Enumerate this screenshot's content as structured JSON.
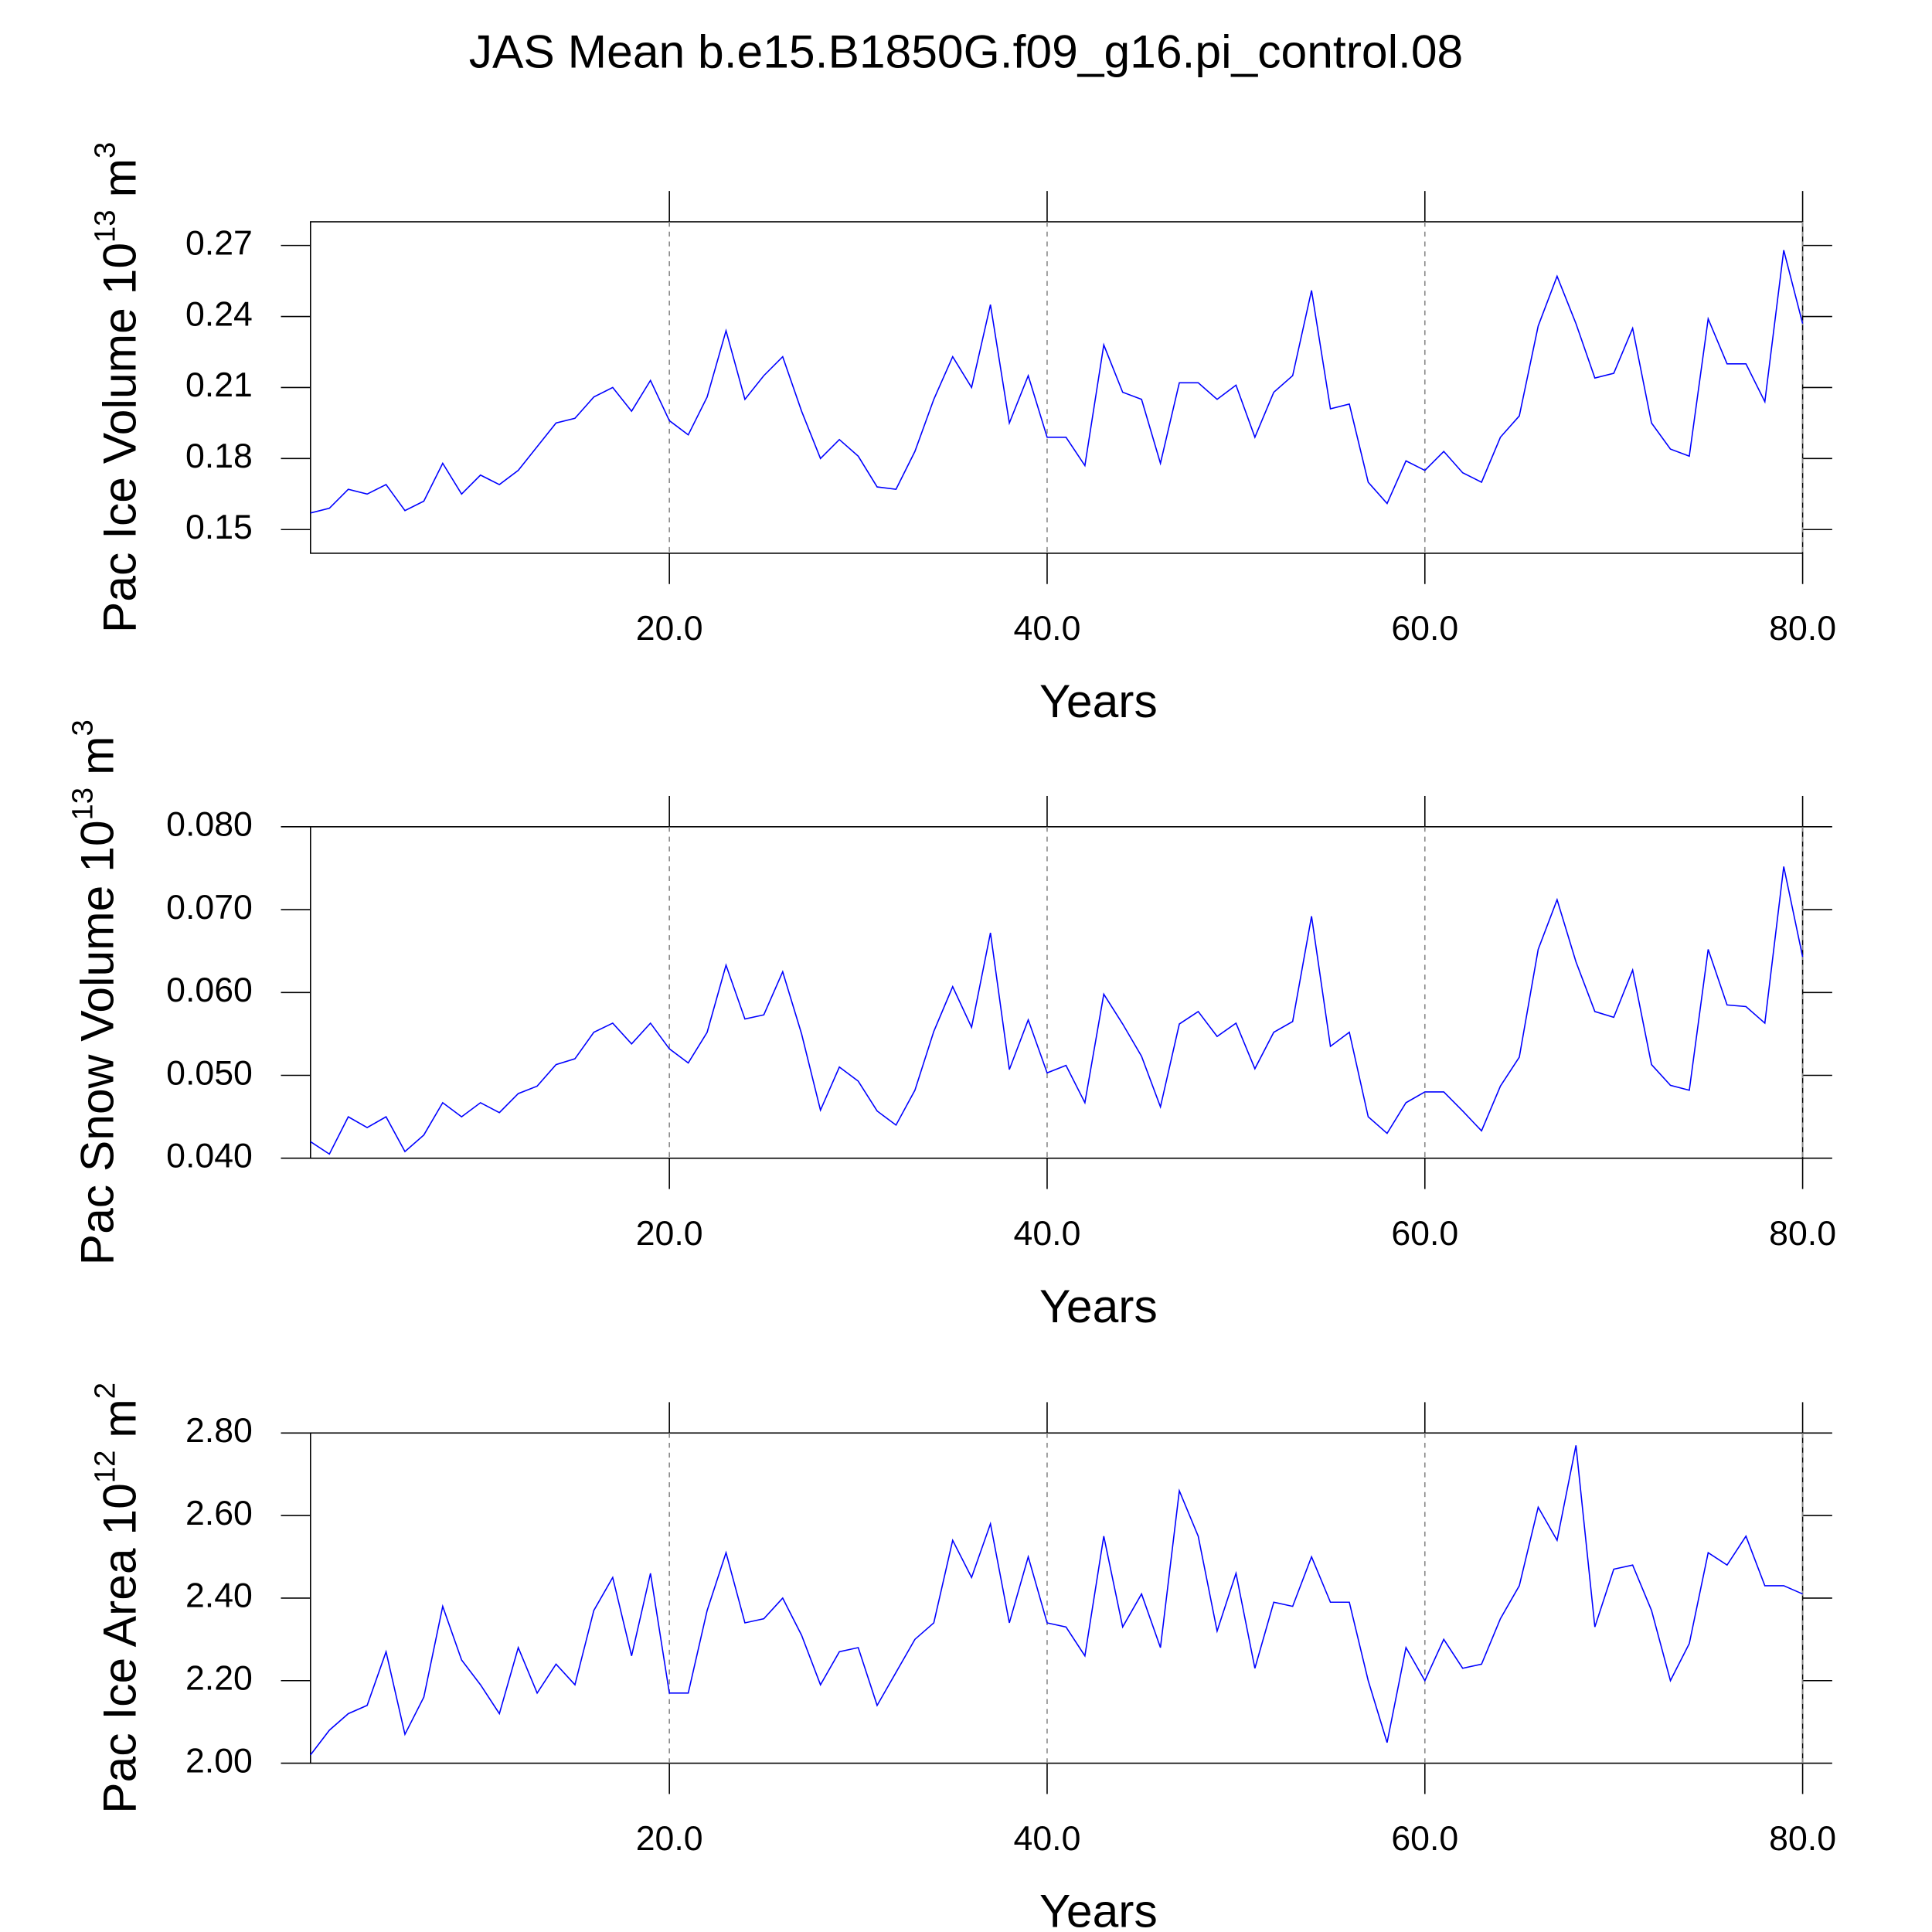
{
  "title": "JAS Mean b.e15.B1850G.f09_g16.pi_control.08",
  "chart_data": [
    {
      "type": "line",
      "ylabel": "Pac Ice Volume 10",
      "ylabel_exponent": "13",
      "ylabel_unit": "m",
      "ylabel_unit_exponent": "3",
      "xlabel": "Years",
      "color": "#0000ff",
      "grid": true,
      "xlim": [
        1,
        80
      ],
      "xticks": [
        {
          "value": 20,
          "label": "20.0"
        },
        {
          "value": 40,
          "label": "40.0"
        },
        {
          "value": 60,
          "label": "60.0"
        },
        {
          "value": 80,
          "label": "80.0"
        }
      ],
      "ylim": [
        0.14,
        0.28
      ],
      "yticks": [
        0.15,
        0.18,
        0.21,
        0.24,
        0.27
      ],
      "x": [
        1,
        2,
        3,
        4,
        5,
        6,
        7,
        8,
        9,
        10,
        11,
        12,
        13,
        14,
        15,
        16,
        17,
        18,
        19,
        20,
        21,
        22,
        23,
        24,
        25,
        26,
        27,
        28,
        29,
        30,
        31,
        32,
        33,
        34,
        35,
        36,
        37,
        38,
        39,
        40,
        41,
        42,
        43,
        44,
        45,
        46,
        47,
        48,
        49,
        50,
        51,
        52,
        53,
        54,
        55,
        56,
        57,
        58,
        59,
        60,
        61,
        62,
        63,
        64,
        65,
        66,
        67,
        68,
        69,
        70,
        71,
        72,
        73,
        74,
        75,
        76,
        77,
        78,
        79,
        80
      ],
      "values": [
        0.157,
        0.159,
        0.167,
        0.165,
        0.169,
        0.158,
        0.162,
        0.178,
        0.165,
        0.173,
        0.169,
        0.175,
        0.185,
        0.195,
        0.197,
        0.206,
        0.21,
        0.2,
        0.213,
        0.196,
        0.19,
        0.206,
        0.234,
        0.205,
        0.215,
        0.223,
        0.2,
        0.18,
        0.188,
        0.181,
        0.168,
        0.167,
        0.183,
        0.205,
        0.223,
        0.21,
        0.245,
        0.195,
        0.215,
        0.189,
        0.189,
        0.177,
        0.228,
        0.208,
        0.205,
        0.178,
        0.212,
        0.212,
        0.205,
        0.211,
        0.189,
        0.208,
        0.215,
        0.251,
        0.201,
        0.203,
        0.17,
        0.161,
        0.179,
        0.175,
        0.183,
        0.174,
        0.17,
        0.189,
        0.198,
        0.236,
        0.257,
        0.237,
        0.214,
        0.216,
        0.235,
        0.195,
        0.184,
        0.181,
        0.239,
        0.22,
        0.22,
        0.204,
        0.268,
        0.237
      ]
    },
    {
      "type": "line",
      "ylabel": "Pac Snow Volume 10",
      "ylabel_exponent": "13",
      "ylabel_unit": "m",
      "ylabel_unit_exponent": "3",
      "xlabel": "Years",
      "color": "#0000ff",
      "grid": true,
      "xlim": [
        1,
        80
      ],
      "xticks": [
        {
          "value": 20,
          "label": "20.0"
        },
        {
          "value": 40,
          "label": "40.0"
        },
        {
          "value": 60,
          "label": "60.0"
        },
        {
          "value": 80,
          "label": "80.0"
        }
      ],
      "ylim": [
        0.04,
        0.08
      ],
      "yticks": [
        {
          "value": 0.04,
          "label": "0.040"
        },
        {
          "value": 0.05,
          "label": "0.050"
        },
        {
          "value": 0.06,
          "label": "0.060"
        },
        {
          "value": 0.07,
          "label": "0.070"
        },
        {
          "value": 0.08,
          "label": "0.080"
        }
      ],
      "x": [
        1,
        2,
        3,
        4,
        5,
        6,
        7,
        8,
        9,
        10,
        11,
        12,
        13,
        14,
        15,
        16,
        17,
        18,
        19,
        20,
        21,
        22,
        23,
        24,
        25,
        26,
        27,
        28,
        29,
        30,
        31,
        32,
        33,
        34,
        35,
        36,
        37,
        38,
        39,
        40,
        41,
        42,
        43,
        44,
        45,
        46,
        47,
        48,
        49,
        50,
        51,
        52,
        53,
        54,
        55,
        56,
        57,
        58,
        59,
        60,
        61,
        62,
        63,
        64,
        65,
        66,
        67,
        68,
        69,
        70,
        71,
        72,
        73,
        74,
        75,
        76,
        77,
        78,
        79,
        80
      ],
      "values": [
        0.042,
        0.0405,
        0.045,
        0.0437,
        0.045,
        0.0408,
        0.0428,
        0.0467,
        0.045,
        0.0467,
        0.0455,
        0.0478,
        0.0487,
        0.0513,
        0.052,
        0.0552,
        0.0563,
        0.0538,
        0.0563,
        0.0532,
        0.0515,
        0.0552,
        0.0633,
        0.0568,
        0.0573,
        0.0625,
        0.055,
        0.0458,
        0.051,
        0.0493,
        0.0457,
        0.044,
        0.0482,
        0.0553,
        0.0607,
        0.0558,
        0.0672,
        0.0507,
        0.0567,
        0.0503,
        0.0512,
        0.0467,
        0.0598,
        0.0562,
        0.0523,
        0.0462,
        0.0562,
        0.0577,
        0.0547,
        0.0563,
        0.0508,
        0.0552,
        0.0565,
        0.0692,
        0.0535,
        0.0552,
        0.045,
        0.043,
        0.0467,
        0.048,
        0.048,
        0.0457,
        0.0433,
        0.0487,
        0.0522,
        0.0652,
        0.0712,
        0.0637,
        0.0577,
        0.057,
        0.0627,
        0.0513,
        0.0488,
        0.0482,
        0.0652,
        0.0585,
        0.0583,
        0.0563,
        0.0752,
        0.0643
      ]
    },
    {
      "type": "line",
      "ylabel": "Pac Ice Area 10",
      "ylabel_exponent": "12",
      "ylabel_unit": "m",
      "ylabel_unit_exponent": "2",
      "xlabel": "Years",
      "color": "#0000ff",
      "grid": true,
      "xlim": [
        1,
        80
      ],
      "xticks": [
        {
          "value": 20,
          "label": "20.0"
        },
        {
          "value": 40,
          "label": "40.0"
        },
        {
          "value": 60,
          "label": "60.0"
        },
        {
          "value": 80,
          "label": "80.0"
        }
      ],
      "ylim": [
        2.0,
        2.8
      ],
      "yticks": [
        {
          "value": 2.0,
          "label": "2.00"
        },
        {
          "value": 2.2,
          "label": "2.20"
        },
        {
          "value": 2.4,
          "label": "2.40"
        },
        {
          "value": 2.6,
          "label": "2.60"
        },
        {
          "value": 2.8,
          "label": "2.80"
        }
      ],
      "x": [
        1,
        2,
        3,
        4,
        5,
        6,
        7,
        8,
        9,
        10,
        11,
        12,
        13,
        14,
        15,
        16,
        17,
        18,
        19,
        20,
        21,
        22,
        23,
        24,
        25,
        26,
        27,
        28,
        29,
        30,
        31,
        32,
        33,
        34,
        35,
        36,
        37,
        38,
        39,
        40,
        41,
        42,
        43,
        44,
        45,
        46,
        47,
        48,
        49,
        50,
        51,
        52,
        53,
        54,
        55,
        56,
        57,
        58,
        59,
        60,
        61,
        62,
        63,
        64,
        65,
        66,
        67,
        68,
        69,
        70,
        71,
        72,
        73,
        74,
        75,
        76,
        77,
        78,
        79,
        80
      ],
      "values": [
        2.02,
        2.08,
        2.12,
        2.14,
        2.27,
        2.07,
        2.16,
        2.38,
        2.25,
        2.19,
        2.12,
        2.28,
        2.17,
        2.24,
        2.19,
        2.37,
        2.45,
        2.26,
        2.46,
        2.17,
        2.17,
        2.37,
        2.51,
        2.34,
        2.35,
        2.4,
        2.31,
        2.19,
        2.27,
        2.28,
        2.14,
        2.22,
        2.3,
        2.34,
        2.54,
        2.45,
        2.58,
        2.34,
        2.5,
        2.34,
        2.33,
        2.26,
        2.55,
        2.33,
        2.41,
        2.28,
        2.66,
        2.55,
        2.32,
        2.46,
        2.23,
        2.39,
        2.38,
        2.5,
        2.39,
        2.39,
        2.2,
        2.05,
        2.28,
        2.2,
        2.3,
        2.23,
        2.24,
        2.35,
        2.43,
        2.62,
        2.54,
        2.77,
        2.33,
        2.47,
        2.48,
        2.37,
        2.2,
        2.29,
        2.51,
        2.48,
        2.55,
        2.43,
        2.43,
        2.41
      ]
    }
  ]
}
